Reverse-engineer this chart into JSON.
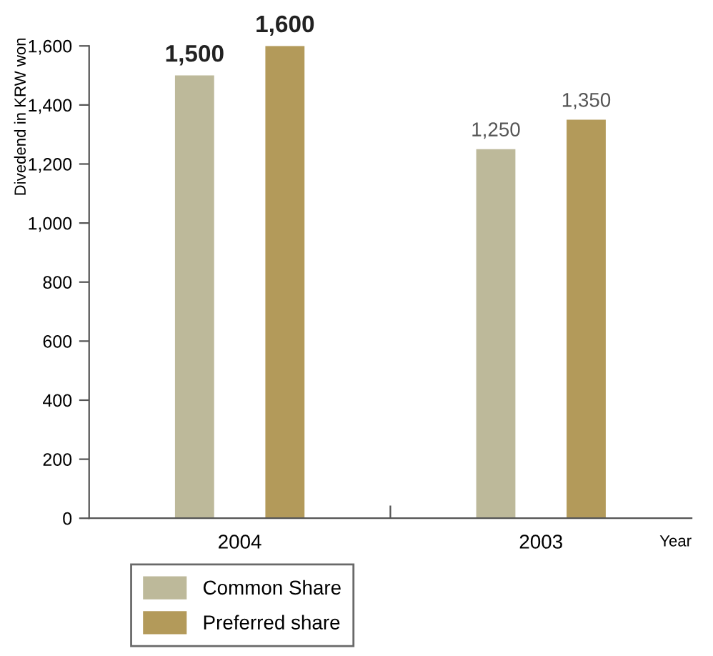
{
  "chart_data": {
    "type": "bar",
    "ylabel": "Divedend in KRW won",
    "xlabel": "Year",
    "categories": [
      "2004",
      "2003"
    ],
    "series": [
      {
        "name": "Common Share",
        "color": "#bdb99a",
        "values": [
          1500,
          1250
        ],
        "value_labels": [
          "1,500",
          "1,250"
        ]
      },
      {
        "name": "Preferred share",
        "color": "#b39a5a",
        "values": [
          1600,
          1350
        ],
        "value_labels": [
          "1,600",
          "1,350"
        ]
      }
    ],
    "ylim": [
      0,
      1600
    ],
    "yticks": [
      0,
      200,
      400,
      600,
      800,
      {
        "value": 1000,
        "label": "1,000"
      },
      {
        "value": 1200,
        "label": "1,200"
      },
      {
        "value": 1400,
        "label": "1,400"
      },
      {
        "value": 1600,
        "label": "1,600"
      }
    ],
    "legend": "bottom",
    "grid": false
  }
}
